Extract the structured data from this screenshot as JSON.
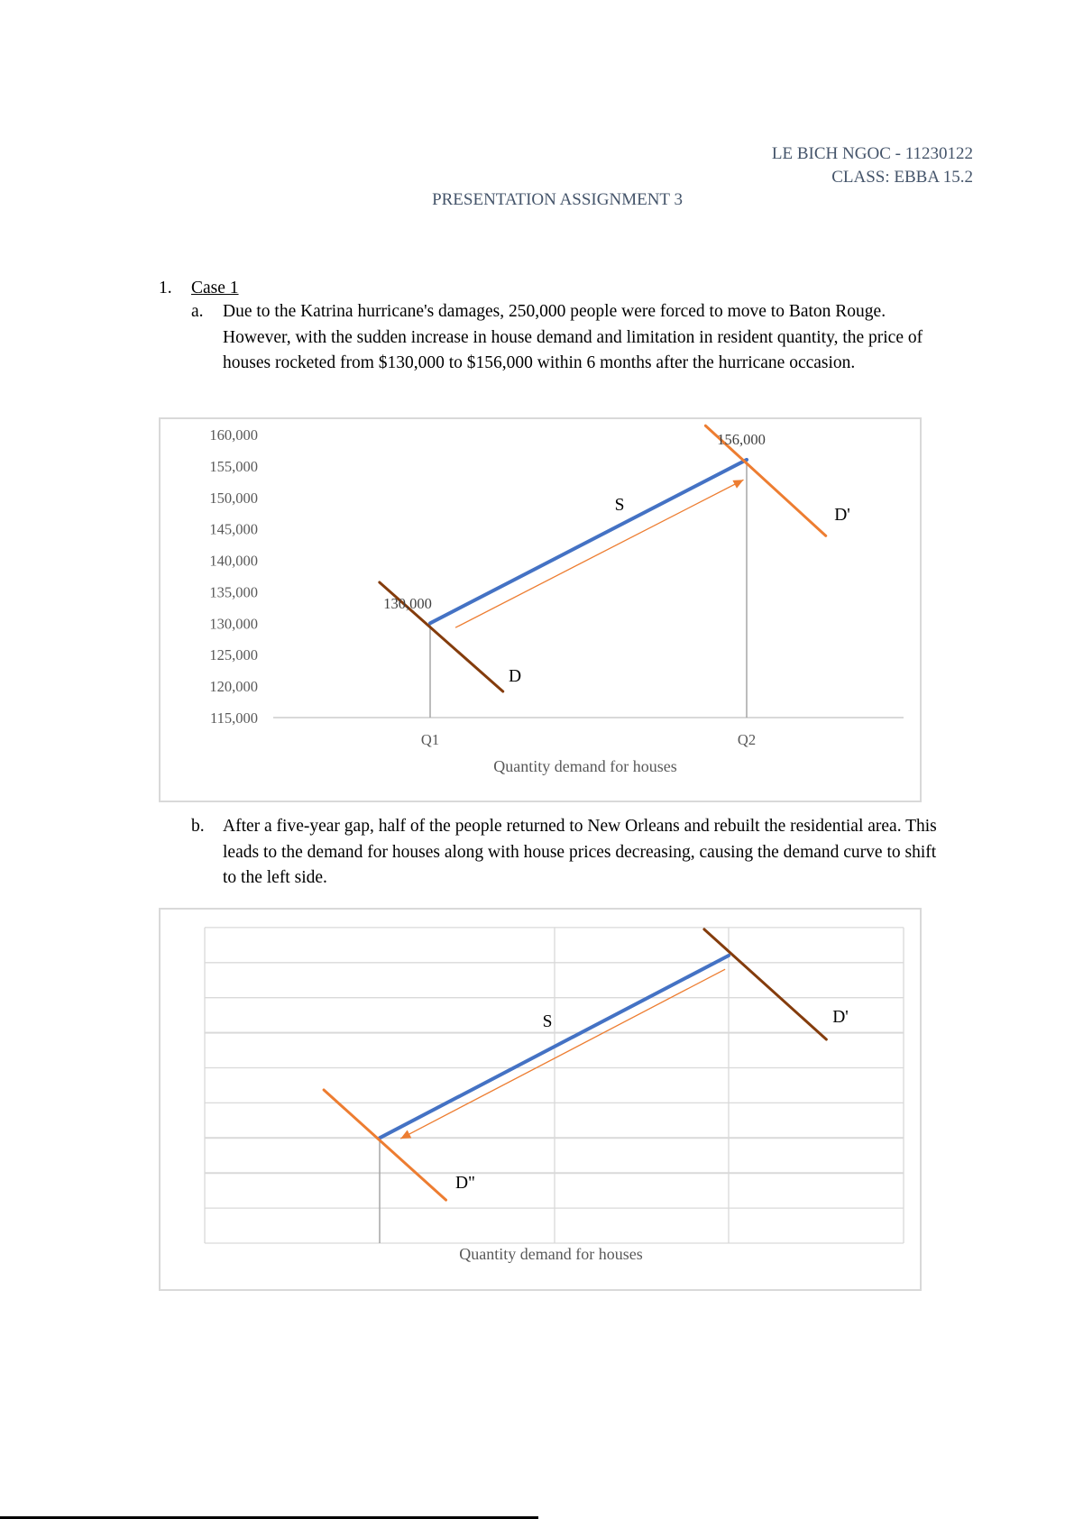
{
  "header": {
    "author": "LE BICH NGOC - 11230122",
    "class": "CLASS: EBBA 15.2",
    "title": "PRESENTATION ASSIGNMENT 3"
  },
  "section": {
    "number": "1.",
    "title": "Case 1",
    "items": [
      {
        "marker": "a.",
        "text": "Due to the Katrina hurricane's damages, 250,000 people were forced to move to Baton Rouge. However, with the sudden increase in house demand and limitation in resident quantity, the price of houses rocketed from $130,000 to $156,000 within 6 months after the hurricane occasion."
      },
      {
        "marker": "b.",
        "text": "After a five-year gap, half of the people returned to New Orleans and rebuilt the residential area. This leads to the demand for houses along with house prices decreasing, causing the demand curve to shift to the left side."
      }
    ]
  },
  "colors": {
    "supply": "#4472c4",
    "demand": "#843c0c",
    "shift": "#ed7d31",
    "grid": "#d9d9d9",
    "axis_text": "#595959",
    "header_text": "#44546a"
  },
  "chart_data": [
    {
      "type": "line",
      "xlabel": "Quantity demand for houses",
      "ylabel": "",
      "ylim": [
        115000,
        160000
      ],
      "yticks": [
        "160,000",
        "155,000",
        "150,000",
        "145,000",
        "140,000",
        "135,000",
        "130,000",
        "125,000",
        "120,000",
        "115,000"
      ],
      "ytick_values": [
        160000,
        155000,
        150000,
        145000,
        140000,
        135000,
        130000,
        125000,
        120000,
        115000
      ],
      "xticks": [
        {
          "label": "Q1",
          "x": 1
        },
        {
          "label": "Q2",
          "x": 2
        }
      ],
      "grid": false,
      "series": [
        {
          "name": "S",
          "color": "#4472c4",
          "points": [
            [
              1,
              130000
            ],
            [
              2,
              156000
            ]
          ]
        },
        {
          "name": "D",
          "color": "#843c0c",
          "points": [
            [
              0.84,
              136500
            ],
            [
              1.23,
              119150
            ]
          ]
        },
        {
          "name": "D'",
          "color": "#ed7d31",
          "points": [
            [
              1.87,
              161400
            ],
            [
              2.25,
              143900
            ]
          ]
        }
      ],
      "arrow": {
        "color": "#ed7d31",
        "from": [
          1.08,
          129300
        ],
        "to": [
          1.99,
          152800
        ]
      },
      "annotations": [
        {
          "text": "130,000",
          "x": 1,
          "y": 130000
        },
        {
          "text": "156,000",
          "x": 2,
          "y": 156000
        }
      ],
      "droplines": [
        [
          1,
          130000
        ],
        [
          2,
          156000
        ]
      ]
    },
    {
      "type": "line",
      "xlabel": "Quantity demand for houses",
      "ylim": [
        0,
        9
      ],
      "grid": true,
      "series": [
        {
          "name": "S",
          "color": "#4472c4",
          "points": [
            [
              1,
              3
            ],
            [
              2,
              8.2
            ]
          ]
        },
        {
          "name": "D'",
          "color": "#843c0c",
          "points": [
            [
              1.93,
              8.95
            ],
            [
              2.28,
              5.81
            ]
          ]
        },
        {
          "name": "D\"",
          "color": "#ed7d31",
          "points": [
            [
              0.84,
              4.37
            ],
            [
              1.19,
              1.23
            ]
          ]
        }
      ],
      "arrow": {
        "color": "#ed7d31",
        "from": [
          1.99,
          7.81
        ],
        "to": [
          1.06,
          2.98
        ]
      },
      "droplines": [
        [
          1,
          3
        ]
      ]
    }
  ]
}
